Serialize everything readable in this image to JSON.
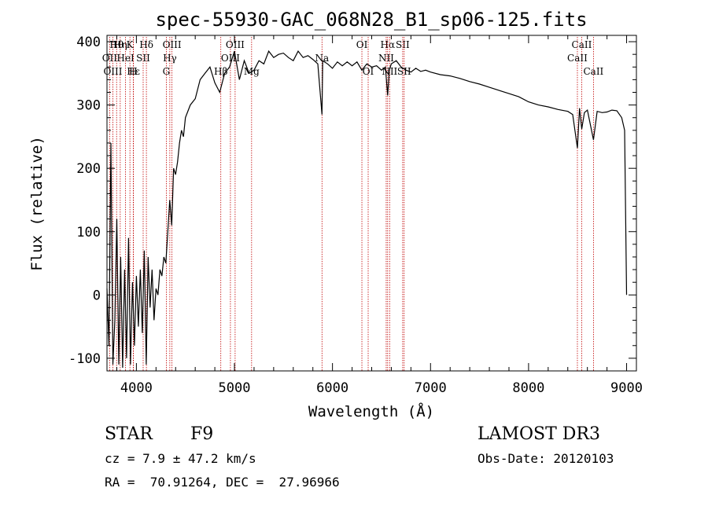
{
  "chart_data": {
    "type": "line",
    "title": "spec-55930-GAC_068N28_B1_sp06-125.fits",
    "xlabel": "Wavelength (Å)",
    "ylabel": "Flux (relative)",
    "xlim": [
      3700,
      9100
    ],
    "ylim": [
      -120,
      410
    ],
    "xticks": [
      4000,
      5000,
      6000,
      7000,
      8000,
      9000
    ],
    "yticks": [
      -100,
      0,
      100,
      200,
      300,
      400
    ],
    "series": [
      {
        "x": [
          3700,
          3720,
          3740,
          3760,
          3780,
          3800,
          3820,
          3840,
          3860,
          3880,
          3900,
          3920,
          3940,
          3960,
          3980,
          4000,
          4020,
          4040,
          4060,
          4080,
          4100,
          4120,
          4140,
          4160,
          4180,
          4200,
          4220,
          4240,
          4260,
          4280,
          4300,
          4320,
          4340,
          4360,
          4380,
          4400,
          4420,
          4440,
          4460,
          4480,
          4500,
          4550,
          4600,
          4650,
          4700,
          4750,
          4800,
          4850,
          4900,
          4950,
          5000,
          5050,
          5100,
          5150,
          5200,
          5250,
          5300,
          5350,
          5400,
          5450,
          5500,
          5550,
          5600,
          5650,
          5700,
          5750,
          5800,
          5850,
          5893,
          5900,
          5950,
          6000,
          6050,
          6100,
          6150,
          6200,
          6250,
          6300,
          6350,
          6400,
          6450,
          6500,
          6540,
          6563,
          6580,
          6600,
          6650,
          6700,
          6750,
          6800,
          6850,
          6900,
          6950,
          7000,
          7100,
          7200,
          7300,
          7400,
          7500,
          7600,
          7700,
          7800,
          7900,
          8000,
          8100,
          8200,
          8300,
          8400,
          8450,
          8498,
          8520,
          8542,
          8570,
          8600,
          8662,
          8700,
          8750,
          8800,
          8850,
          8900,
          8950,
          8980,
          9000
        ],
        "values": [
          10,
          -80,
          240,
          -110,
          -40,
          120,
          -110,
          60,
          -115,
          40,
          -100,
          90,
          -110,
          20,
          -80,
          30,
          -50,
          40,
          -60,
          70,
          -110,
          60,
          -20,
          40,
          -40,
          10,
          0,
          40,
          30,
          60,
          50,
          100,
          150,
          110,
          200,
          190,
          210,
          240,
          260,
          250,
          280,
          300,
          310,
          340,
          350,
          360,
          335,
          320,
          350,
          360,
          385,
          340,
          370,
          350,
          355,
          370,
          365,
          385,
          375,
          380,
          382,
          375,
          370,
          385,
          375,
          378,
          372,
          365,
          285,
          370,
          365,
          358,
          368,
          362,
          368,
          362,
          368,
          355,
          365,
          360,
          362,
          355,
          360,
          315,
          355,
          365,
          370,
          360,
          355,
          352,
          358,
          353,
          355,
          352,
          348,
          346,
          342,
          337,
          333,
          328,
          323,
          318,
          313,
          305,
          300,
          297,
          293,
          290,
          285,
          232,
          295,
          262,
          288,
          292,
          245,
          290,
          288,
          289,
          292,
          291,
          280,
          260,
          0
        ]
      }
    ],
    "line_markers": [
      {
        "label": "Hθ",
        "x": 3798,
        "row": 0
      },
      {
        "label": "Hη",
        "x": 3835,
        "row": 0
      },
      {
        "label": "K",
        "x": 3934,
        "row": 0
      },
      {
        "label": "Hδ",
        "x": 4102,
        "row": 0
      },
      {
        "label": "OII",
        "x": 3727,
        "row": 1
      },
      {
        "label": "HeI",
        "x": 3889,
        "row": 1
      },
      {
        "label": "SII",
        "x": 4069,
        "row": 1
      },
      {
        "label": "OIII",
        "x": 3760,
        "row": 2
      },
      {
        "label": "Hε",
        "x": 3970,
        "row": 2
      },
      {
        "label": "H",
        "x": 3968,
        "row": 2
      },
      {
        "label": "OIII",
        "x": 4363,
        "row": 0
      },
      {
        "label": "Hγ",
        "x": 4341,
        "row": 1
      },
      {
        "label": "G",
        "x": 4305,
        "row": 2
      },
      {
        "label": "OIII",
        "x": 5007,
        "row": 0
      },
      {
        "label": "OIII",
        "x": 4959,
        "row": 1
      },
      {
        "label": "Hβ",
        "x": 4861,
        "row": 2
      },
      {
        "label": "Mg",
        "x": 5175,
        "row": 2
      },
      {
        "label": "Na",
        "x": 5893,
        "row": 1
      },
      {
        "label": "OI",
        "x": 6300,
        "row": 0
      },
      {
        "label": "OI",
        "x": 6364,
        "row": 2
      },
      {
        "label": "Hα",
        "x": 6563,
        "row": 0
      },
      {
        "label": "SII",
        "x": 6716,
        "row": 0
      },
      {
        "label": "NII",
        "x": 6548,
        "row": 1
      },
      {
        "label": "NII",
        "x": 6583,
        "row": 2
      },
      {
        "label": "SII",
        "x": 6731,
        "row": 2
      },
      {
        "label": "CaII",
        "x": 8542,
        "row": 0
      },
      {
        "label": "CaII",
        "x": 8498,
        "row": 1
      },
      {
        "label": "CaII",
        "x": 8662,
        "row": 2
      }
    ]
  },
  "info": {
    "class": "STAR",
    "subclass": "F9",
    "survey": "LAMOST DR3",
    "cz": "cz = 7.9 ± 47.2 km/s",
    "obs_date": "Obs-Date: 20120103",
    "coords": "RA =  70.91264, DEC =  27.96966"
  }
}
